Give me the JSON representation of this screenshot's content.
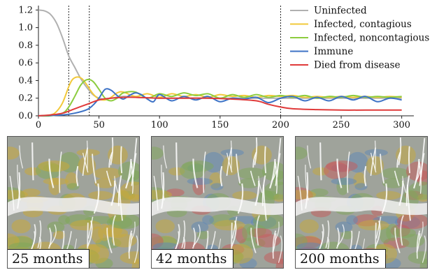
{
  "chart_data": {
    "type": "line",
    "xlim": [
      0,
      310
    ],
    "ylim": [
      0,
      1.25
    ],
    "x_ticks": [
      0,
      50,
      100,
      150,
      200,
      250,
      300
    ],
    "x_tick_labels": [
      "0",
      "50",
      "100",
      "150",
      "200",
      "250",
      "300"
    ],
    "y_ticks": [
      0,
      0.2,
      0.4,
      0.6,
      0.8,
      1.0,
      1.2
    ],
    "y_tick_labels": [
      "0.0",
      "0.2",
      "0.4",
      "0.6",
      "0.8",
      "1.0",
      "1.2"
    ],
    "vlines": [
      25,
      42,
      200
    ],
    "legend_position": "top-right",
    "grid": false,
    "series": [
      {
        "name": "Uninfected",
        "color": "#b0b0b0",
        "x": [
          0,
          5,
          10,
          15,
          20,
          25,
          30,
          35,
          40,
          45,
          50,
          55,
          60,
          70,
          80,
          100,
          130,
          160,
          200,
          250,
          300
        ],
        "y": [
          1.2,
          1.19,
          1.15,
          1.05,
          0.88,
          0.68,
          0.55,
          0.42,
          0.32,
          0.24,
          0.2,
          0.19,
          0.2,
          0.22,
          0.21,
          0.2,
          0.2,
          0.2,
          0.2,
          0.2,
          0.2
        ]
      },
      {
        "name": "Infected, contagious",
        "color": "#f2c93a",
        "x": [
          0,
          10,
          15,
          20,
          25,
          28,
          32,
          36,
          40,
          45,
          50,
          55,
          60,
          65,
          70,
          80,
          90,
          100,
          110,
          120,
          130,
          140,
          150,
          160,
          170,
          180,
          190,
          200,
          210,
          220,
          230,
          240,
          250,
          260,
          270,
          280,
          290,
          300
        ],
        "y": [
          0.0,
          0.01,
          0.05,
          0.15,
          0.33,
          0.41,
          0.44,
          0.42,
          0.35,
          0.25,
          0.19,
          0.18,
          0.21,
          0.26,
          0.27,
          0.22,
          0.25,
          0.21,
          0.25,
          0.22,
          0.24,
          0.21,
          0.24,
          0.22,
          0.23,
          0.21,
          0.23,
          0.22,
          0.23,
          0.21,
          0.22,
          0.21,
          0.22,
          0.21,
          0.22,
          0.21,
          0.22,
          0.21
        ]
      },
      {
        "name": "Infected, noncontagious",
        "color": "#8ccc3e",
        "x": [
          0,
          10,
          20,
          25,
          30,
          35,
          40,
          45,
          50,
          55,
          60,
          65,
          70,
          80,
          90,
          100,
          110,
          120,
          130,
          140,
          150,
          160,
          170,
          180,
          190,
          200,
          210,
          220,
          230,
          240,
          250,
          260,
          270,
          280,
          290,
          300
        ],
        "y": [
          0.0,
          0.0,
          0.03,
          0.1,
          0.22,
          0.35,
          0.41,
          0.39,
          0.3,
          0.2,
          0.17,
          0.2,
          0.26,
          0.27,
          0.2,
          0.25,
          0.22,
          0.26,
          0.23,
          0.25,
          0.2,
          0.24,
          0.21,
          0.24,
          0.21,
          0.23,
          0.21,
          0.23,
          0.2,
          0.22,
          0.21,
          0.23,
          0.21,
          0.22,
          0.21,
          0.22
        ]
      },
      {
        "name": "Immune",
        "color": "#3d72c6",
        "x": [
          0,
          20,
          30,
          40,
          45,
          50,
          55,
          60,
          65,
          70,
          75,
          80,
          85,
          90,
          95,
          100,
          110,
          120,
          130,
          140,
          150,
          160,
          170,
          180,
          190,
          200,
          210,
          220,
          230,
          240,
          250,
          260,
          270,
          280,
          290,
          300
        ],
        "y": [
          0.0,
          0.01,
          0.03,
          0.07,
          0.12,
          0.2,
          0.3,
          0.29,
          0.23,
          0.19,
          0.23,
          0.26,
          0.24,
          0.19,
          0.16,
          0.24,
          0.17,
          0.22,
          0.18,
          0.22,
          0.16,
          0.2,
          0.19,
          0.21,
          0.15,
          0.2,
          0.22,
          0.17,
          0.21,
          0.17,
          0.22,
          0.18,
          0.22,
          0.16,
          0.2,
          0.18
        ]
      },
      {
        "name": "Died from disease",
        "color": "#e03a3a",
        "x": [
          0,
          10,
          20,
          30,
          40,
          50,
          60,
          70,
          80,
          100,
          120,
          140,
          160,
          180,
          190,
          200,
          210,
          230,
          250,
          270,
          300
        ],
        "y": [
          0.0,
          0.01,
          0.03,
          0.08,
          0.13,
          0.18,
          0.2,
          0.21,
          0.21,
          0.2,
          0.2,
          0.2,
          0.19,
          0.17,
          0.13,
          0.1,
          0.08,
          0.07,
          0.065,
          0.065,
          0.065
        ]
      }
    ]
  },
  "panels": [
    {
      "caption": "25 months"
    },
    {
      "caption": "42 months"
    },
    {
      "caption": "200 months"
    }
  ],
  "map_colors": {
    "valley_base": "#9fa39b",
    "ridge_line": "#ffffff",
    "yellow_patch": "#c8a93a",
    "green_patch": "#7fa85a",
    "blue_patch": "#5d87b8",
    "red_patch": "#c85a5a",
    "river": "#ececec"
  }
}
